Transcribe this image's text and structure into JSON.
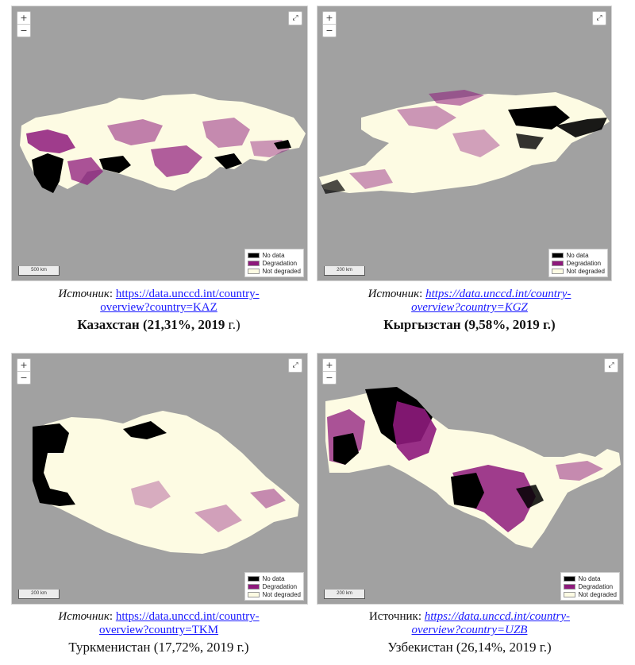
{
  "controls": {
    "zoom_in": "+",
    "zoom_out": "−",
    "fullscreen": "⤢"
  },
  "legend": [
    {
      "label": "No data",
      "color": "#000000"
    },
    {
      "label": "Degradation",
      "color": "#8e1a7c"
    },
    {
      "label": "Not degraded",
      "color": "#fdfbe3"
    }
  ],
  "colors": {
    "background": "#a1a1a1",
    "land": "#fdfbe3",
    "degradation": "#8e1a7c",
    "nodata": "#000000",
    "link": "#1a1aff"
  },
  "maps": [
    {
      "scale": "500 km",
      "source_prefix": "Источник",
      "source_sep": ":",
      "link_line1": "https://data.unccd.int/country-",
      "link_line2": "overview?country=KAZ",
      "title_main": "Казахстан (21,31%, 2019 ",
      "title_year": "г.)"
    },
    {
      "scale": "200 km",
      "source_prefix": "Источник",
      "source_sep": ":",
      "link_line1": "https://data.unccd.int/country-",
      "link_line2": "overview?country=KGZ",
      "title_main": "Кыргызстан (9,58%, 2019 г.)",
      "title_year": ""
    },
    {
      "scale": "200 km",
      "source_prefix": "Источник",
      "source_sep": ":",
      "link_line1": "https://data.unccd.int/country-",
      "link_line2": "overview?country=TKM",
      "title_main": "Туркменистан (17,72%, 2019 г.)",
      "title_year": ""
    },
    {
      "scale": "200 km",
      "source_prefix": "Источник",
      "source_sep": ":",
      "link_line1": "https://data.unccd.int/country-",
      "link_line2": "overview?country=UZB",
      "title_main": "Узбекистан (26,14%, 2019 г.)",
      "title_year": ""
    }
  ]
}
